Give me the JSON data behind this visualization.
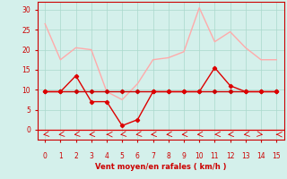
{
  "x": [
    0,
    1,
    2,
    3,
    4,
    5,
    6,
    7,
    8,
    9,
    10,
    11,
    12,
    13,
    14,
    15
  ],
  "line_dark_red": [
    9.5,
    9.5,
    13.5,
    7.0,
    7.0,
    1.0,
    2.5,
    9.5,
    9.5,
    9.5,
    9.5,
    15.5,
    11.0,
    9.5,
    9.5,
    9.5
  ],
  "line_light_pink": [
    26.5,
    17.5,
    20.5,
    20.0,
    9.5,
    7.5,
    11.5,
    17.5,
    18.0,
    19.5,
    30.5,
    22.0,
    24.5,
    20.5,
    17.5,
    17.5
  ],
  "line_flat": [
    9.5,
    9.5,
    9.5,
    9.5,
    9.5,
    9.5,
    9.5,
    9.5,
    9.5,
    9.5,
    9.5,
    9.5,
    9.5,
    9.5,
    9.5,
    9.5
  ],
  "color_dark_red": "#dd0000",
  "color_light_pink": "#ffaaaa",
  "color_flat": "#cc0000",
  "bg_color": "#d4f0eb",
  "grid_color": "#aad8cc",
  "xlabel": "Vent moyen/en rafales ( km/h )",
  "xlabel_color": "#cc0000",
  "tick_color": "#cc0000",
  "ylim": [
    -2.5,
    32
  ],
  "xlim": [
    -0.5,
    15.5
  ],
  "yticks": [
    0,
    5,
    10,
    15,
    20,
    25,
    30
  ],
  "xticks": [
    0,
    1,
    2,
    3,
    4,
    5,
    6,
    7,
    8,
    9,
    10,
    11,
    12,
    13,
    14,
    15
  ],
  "arrow_angles": [
    225,
    225,
    225,
    210,
    180,
    225,
    225,
    210,
    210,
    210,
    210,
    195,
    210,
    225,
    315,
    180
  ]
}
